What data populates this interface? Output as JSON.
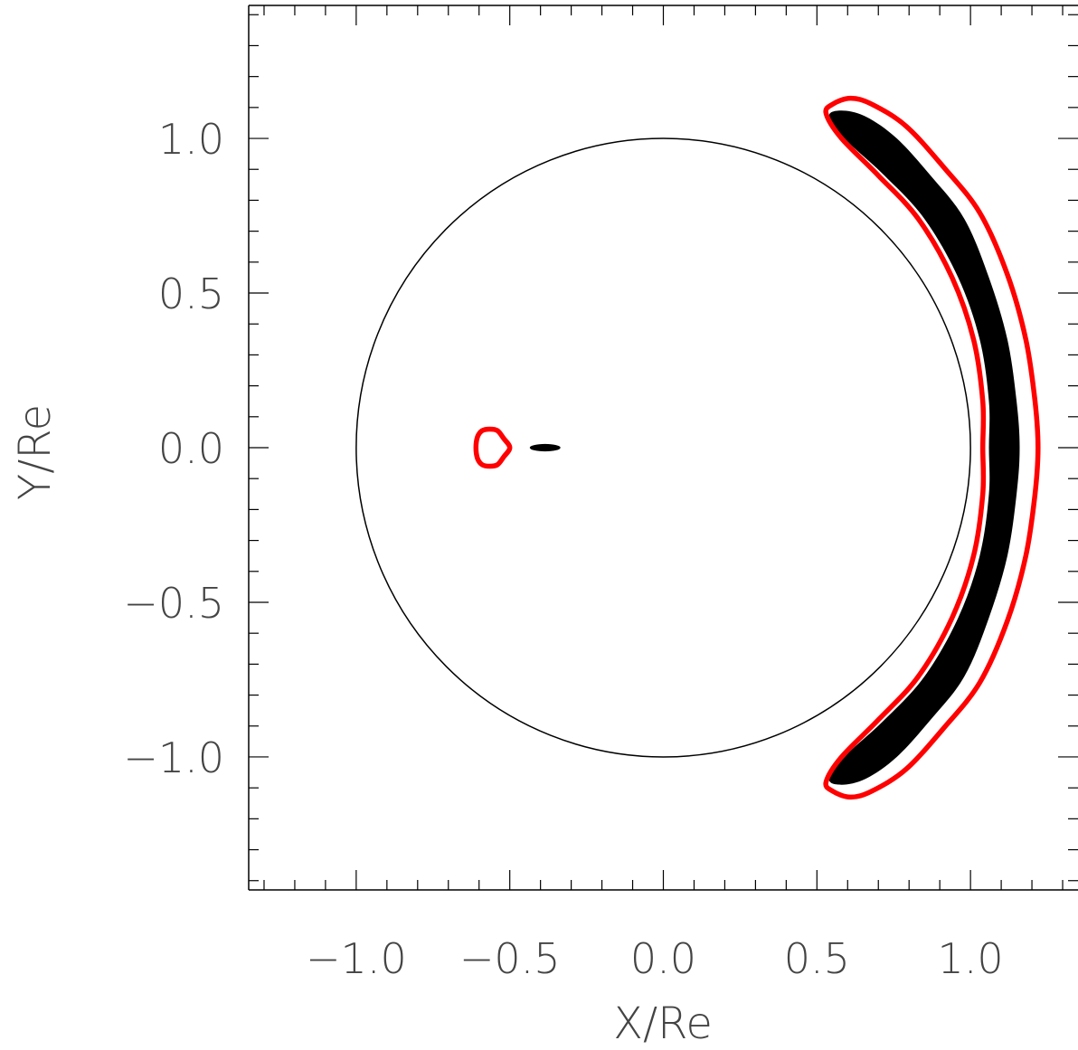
{
  "chart_data": {
    "type": "line",
    "xlabel": "X/Re",
    "ylabel": "Y/Re",
    "xlim": [
      -1.35,
      1.35
    ],
    "ylim": [
      -1.43,
      1.43
    ],
    "x_ticks": [
      -1.0,
      -0.5,
      0.0,
      0.5,
      1.0
    ],
    "x_tick_labels": [
      "−1.0",
      "−0.5",
      "0.0",
      "0.5",
      "1.0"
    ],
    "y_ticks": [
      -1.0,
      -0.5,
      0.0,
      0.5,
      1.0
    ],
    "y_tick_labels": [
      "−1.0",
      "−0.5",
      "0.0",
      "0.5",
      "1.0"
    ],
    "series": [
      {
        "kind": "circle",
        "center": [
          0,
          0
        ],
        "radius": 1.0,
        "color": "#000000"
      },
      {
        "kind": "filled_region",
        "color": "#000000",
        "points": [
          [
            0.54,
            1.07
          ],
          [
            0.58,
            1.09
          ],
          [
            0.66,
            1.07
          ],
          [
            0.76,
            1.0
          ],
          [
            0.87,
            0.88
          ],
          [
            0.98,
            0.74
          ],
          [
            1.06,
            0.55
          ],
          [
            1.12,
            0.35
          ],
          [
            1.15,
            0.15
          ],
          [
            1.16,
            0.0
          ],
          [
            1.15,
            -0.15
          ],
          [
            1.12,
            -0.35
          ],
          [
            1.06,
            -0.55
          ],
          [
            0.98,
            -0.74
          ],
          [
            0.87,
            -0.88
          ],
          [
            0.76,
            -1.0
          ],
          [
            0.66,
            -1.07
          ],
          [
            0.58,
            -1.09
          ],
          [
            0.54,
            -1.07
          ],
          [
            0.6,
            -0.99
          ],
          [
            0.72,
            -0.88
          ],
          [
            0.85,
            -0.74
          ],
          [
            0.96,
            -0.55
          ],
          [
            1.03,
            -0.35
          ],
          [
            1.06,
            -0.15
          ],
          [
            1.06,
            0.0
          ],
          [
            1.06,
            0.15
          ],
          [
            1.03,
            0.35
          ],
          [
            0.96,
            0.55
          ],
          [
            0.85,
            0.74
          ],
          [
            0.72,
            0.88
          ],
          [
            0.6,
            0.99
          ]
        ]
      },
      {
        "kind": "closed_curve",
        "color": "#ff0000",
        "points": [
          [
            0.55,
            1.11
          ],
          [
            0.61,
            1.13
          ],
          [
            0.68,
            1.11
          ],
          [
            0.79,
            1.04
          ],
          [
            0.91,
            0.91
          ],
          [
            1.03,
            0.76
          ],
          [
            1.12,
            0.56
          ],
          [
            1.18,
            0.35
          ],
          [
            1.21,
            0.15
          ],
          [
            1.22,
            0.0
          ],
          [
            1.21,
            -0.15
          ],
          [
            1.18,
            -0.35
          ],
          [
            1.12,
            -0.56
          ],
          [
            1.03,
            -0.76
          ],
          [
            0.91,
            -0.91
          ],
          [
            0.79,
            -1.04
          ],
          [
            0.68,
            -1.11
          ],
          [
            0.61,
            -1.13
          ],
          [
            0.55,
            -1.11
          ],
          [
            0.53,
            -1.08
          ],
          [
            0.58,
            -1.0
          ],
          [
            0.7,
            -0.88
          ],
          [
            0.83,
            -0.74
          ],
          [
            0.94,
            -0.55
          ],
          [
            1.01,
            -0.35
          ],
          [
            1.04,
            -0.15
          ],
          [
            1.04,
            0.0
          ],
          [
            1.04,
            0.15
          ],
          [
            1.01,
            0.35
          ],
          [
            0.94,
            0.55
          ],
          [
            0.83,
            0.74
          ],
          [
            0.7,
            0.88
          ],
          [
            0.58,
            1.0
          ],
          [
            0.53,
            1.08
          ]
        ]
      },
      {
        "kind": "closed_curve",
        "color": "#ff0000",
        "points": [
          [
            -0.61,
            0.0
          ],
          [
            -0.605,
            0.035
          ],
          [
            -0.59,
            0.055
          ],
          [
            -0.565,
            0.06
          ],
          [
            -0.54,
            0.055
          ],
          [
            -0.52,
            0.03
          ],
          [
            -0.5,
            0.0
          ],
          [
            -0.52,
            -0.03
          ],
          [
            -0.54,
            -0.055
          ],
          [
            -0.565,
            -0.06
          ],
          [
            -0.59,
            -0.055
          ],
          [
            -0.605,
            -0.035
          ]
        ]
      },
      {
        "kind": "filled_ellipse",
        "center": [
          -0.385,
          0.0
        ],
        "rx": 0.05,
        "ry": 0.012,
        "color": "#000000"
      }
    ]
  }
}
